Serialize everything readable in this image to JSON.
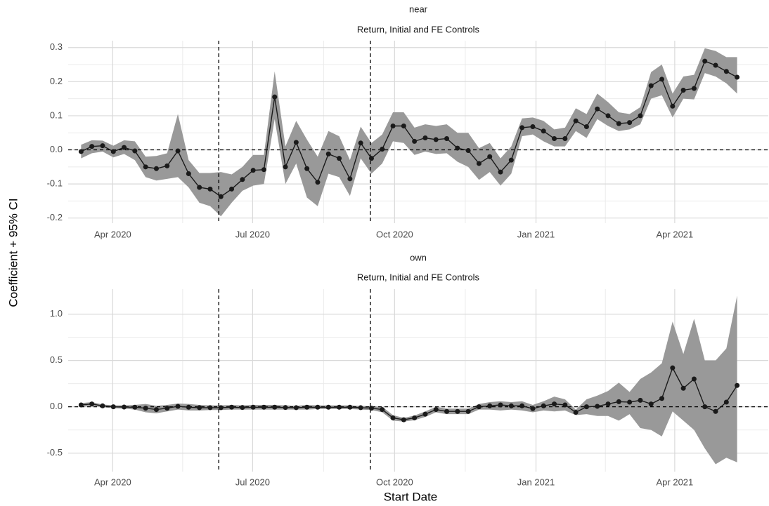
{
  "xlabel": "Start Date",
  "ylabel": "Coefficient + 95% CI",
  "chart_data": [
    {
      "type": "line",
      "title": "near",
      "subtitle": "Return, Initial and FE Controls",
      "x": [
        0,
        1,
        2,
        3,
        4,
        5,
        6,
        7,
        8,
        9,
        10,
        11,
        12,
        13,
        14,
        15,
        16,
        17,
        18,
        19,
        20,
        21,
        22,
        23,
        24,
        25,
        26,
        27,
        28,
        29,
        30,
        31,
        32,
        33,
        34,
        35,
        36,
        37,
        38,
        39,
        40,
        41,
        42,
        43,
        44,
        45,
        46,
        47,
        48,
        49,
        50,
        51,
        52,
        53,
        54,
        55,
        56,
        57,
        58,
        59,
        60,
        61
      ],
      "xlim": [
        -1.2,
        63.9
      ],
      "xticks": [
        {
          "value": 2.94,
          "label": "Apr 2020"
        },
        {
          "value": 15.95,
          "label": "Jul 2020"
        },
        {
          "value": 29.15,
          "label": "Oct 2020"
        },
        {
          "value": 42.3,
          "label": "Jan 2021"
        },
        {
          "value": 55.2,
          "label": "Apr 2021"
        }
      ],
      "ylim": [
        -0.215,
        0.32
      ],
      "yticks": [
        -0.2,
        -0.1,
        {
          "value": 0,
          "label": "0.0"
        },
        0.1,
        0.2,
        0.3
      ],
      "vlines": [
        12.8,
        26.9
      ],
      "hline": 0,
      "grid": true,
      "series": [
        {
          "color": "#1a1a1a",
          "band_color": "#999999",
          "values": [
            -0.005,
            0.01,
            0.012,
            -0.005,
            0.007,
            -0.003,
            -0.05,
            -0.055,
            -0.047,
            -0.003,
            -0.07,
            -0.11,
            -0.115,
            -0.137,
            -0.115,
            -0.087,
            -0.06,
            -0.058,
            0.155,
            -0.05,
            0.022,
            -0.055,
            -0.095,
            -0.012,
            -0.025,
            -0.085,
            0.02,
            -0.025,
            0.002,
            0.07,
            0.07,
            0.025,
            0.035,
            0.03,
            0.033,
            0.005,
            -0.002,
            -0.04,
            -0.02,
            -0.065,
            -0.03,
            0.065,
            0.068,
            0.055,
            0.033,
            0.033,
            0.085,
            0.068,
            0.12,
            0.1,
            0.077,
            0.08,
            0.1,
            0.188,
            0.207,
            0.128,
            0.175,
            0.18,
            0.26,
            0.248,
            0.23,
            0.213
          ],
          "lower": [
            -0.025,
            -0.01,
            -0.005,
            -0.022,
            -0.012,
            -0.03,
            -0.08,
            -0.09,
            -0.085,
            -0.08,
            -0.11,
            -0.155,
            -0.165,
            -0.195,
            -0.155,
            -0.12,
            -0.105,
            -0.1,
            0.09,
            -0.1,
            -0.04,
            -0.14,
            -0.165,
            -0.07,
            -0.08,
            -0.135,
            -0.025,
            -0.07,
            -0.04,
            0.025,
            0.02,
            -0.015,
            -0.005,
            -0.012,
            -0.01,
            -0.035,
            -0.05,
            -0.088,
            -0.065,
            -0.105,
            -0.07,
            0.04,
            0.045,
            0.025,
            0.01,
            0.01,
            0.055,
            0.035,
            0.09,
            0.07,
            0.055,
            0.06,
            0.075,
            0.15,
            0.16,
            0.095,
            0.15,
            0.148,
            0.225,
            0.215,
            0.195,
            0.165
          ],
          "upper": [
            0.015,
            0.028,
            0.027,
            0.012,
            0.028,
            0.025,
            -0.02,
            -0.018,
            -0.01,
            0.105,
            -0.03,
            -0.068,
            -0.068,
            -0.065,
            -0.072,
            -0.05,
            -0.015,
            -0.015,
            0.23,
            0.01,
            0.085,
            0.03,
            -0.02,
            0.055,
            0.04,
            -0.03,
            0.068,
            0.02,
            0.045,
            0.11,
            0.11,
            0.065,
            0.075,
            0.07,
            0.075,
            0.05,
            0.05,
            0.005,
            0.02,
            -0.025,
            0.01,
            0.092,
            0.095,
            0.085,
            0.06,
            0.065,
            0.122,
            0.105,
            0.165,
            0.14,
            0.11,
            0.105,
            0.125,
            0.228,
            0.25,
            0.165,
            0.215,
            0.22,
            0.298,
            0.29,
            0.272,
            0.272
          ]
        }
      ]
    },
    {
      "type": "line",
      "title": "own",
      "subtitle": "Return, Initial and FE Controls",
      "x": [
        0,
        1,
        2,
        3,
        4,
        5,
        6,
        7,
        8,
        9,
        10,
        11,
        12,
        13,
        14,
        15,
        16,
        17,
        18,
        19,
        20,
        21,
        22,
        23,
        24,
        25,
        26,
        27,
        28,
        29,
        30,
        31,
        32,
        33,
        34,
        35,
        36,
        37,
        38,
        39,
        40,
        41,
        42,
        43,
        44,
        45,
        46,
        47,
        48,
        49,
        50,
        51,
        52,
        53,
        54,
        55,
        56,
        57,
        58,
        59,
        60,
        61
      ],
      "xlim": [
        -1.2,
        63.9
      ],
      "xticks": [
        {
          "value": 2.94,
          "label": "Apr 2020"
        },
        {
          "value": 15.95,
          "label": "Jul 2020"
        },
        {
          "value": 29.15,
          "label": "Oct 2020"
        },
        {
          "value": 42.3,
          "label": "Jan 2021"
        },
        {
          "value": 55.2,
          "label": "Apr 2021"
        }
      ],
      "ylim": [
        -0.7,
        1.27
      ],
      "yticks": [
        -0.5,
        {
          "value": 0,
          "label": "0.0"
        },
        0.5,
        {
          "value": 1,
          "label": "1.0"
        }
      ],
      "vlines": [
        12.8,
        26.9
      ],
      "hline": 0,
      "grid": true,
      "series": [
        {
          "color": "#1a1a1a",
          "band_color": "#999999",
          "values": [
            0.02,
            0.03,
            0.01,
            0.0,
            -0.003,
            -0.005,
            -0.015,
            -0.03,
            -0.015,
            0.005,
            -0.005,
            -0.01,
            -0.01,
            -0.01,
            -0.005,
            -0.008,
            -0.005,
            -0.005,
            -0.005,
            -0.008,
            -0.01,
            -0.005,
            -0.005,
            -0.005,
            -0.005,
            -0.005,
            -0.01,
            -0.015,
            -0.03,
            -0.12,
            -0.14,
            -0.12,
            -0.08,
            -0.03,
            -0.05,
            -0.05,
            -0.05,
            0.0,
            0.01,
            0.02,
            0.01,
            0.01,
            -0.02,
            0.01,
            0.03,
            0.02,
            -0.06,
            0.0,
            0.005,
            0.03,
            0.055,
            0.05,
            0.07,
            0.03,
            0.09,
            0.42,
            0.2,
            0.3,
            0.0,
            -0.05,
            0.05,
            0.23
          ],
          "lower": [
            0.0,
            0.01,
            -0.005,
            -0.015,
            -0.02,
            -0.03,
            -0.06,
            -0.07,
            -0.05,
            -0.03,
            -0.04,
            -0.04,
            -0.035,
            -0.035,
            -0.03,
            -0.03,
            -0.03,
            -0.03,
            -0.03,
            -0.03,
            -0.03,
            -0.03,
            -0.025,
            -0.025,
            -0.025,
            -0.025,
            -0.03,
            -0.035,
            -0.06,
            -0.15,
            -0.16,
            -0.145,
            -0.11,
            -0.06,
            -0.08,
            -0.08,
            -0.08,
            -0.03,
            -0.03,
            -0.04,
            -0.03,
            -0.04,
            -0.06,
            -0.04,
            -0.05,
            -0.04,
            -0.09,
            -0.08,
            -0.1,
            -0.1,
            -0.15,
            -0.08,
            -0.23,
            -0.25,
            -0.32,
            -0.05,
            -0.15,
            -0.25,
            -0.45,
            -0.62,
            -0.55,
            -0.6
          ],
          "upper": [
            0.04,
            0.05,
            0.025,
            0.015,
            0.015,
            0.02,
            0.03,
            0.01,
            0.02,
            0.035,
            0.03,
            0.02,
            0.015,
            0.015,
            0.02,
            0.015,
            0.02,
            0.02,
            0.02,
            0.015,
            0.01,
            0.02,
            0.015,
            0.015,
            0.015,
            0.015,
            0.01,
            0.005,
            0.0,
            -0.09,
            -0.12,
            -0.095,
            -0.05,
            0.0,
            -0.02,
            -0.02,
            -0.02,
            0.03,
            0.05,
            0.06,
            0.05,
            0.06,
            0.02,
            0.06,
            0.11,
            0.08,
            -0.03,
            0.08,
            0.12,
            0.17,
            0.26,
            0.16,
            0.3,
            0.37,
            0.47,
            0.92,
            0.57,
            0.95,
            0.5,
            0.5,
            0.63,
            1.2
          ]
        }
      ]
    }
  ]
}
